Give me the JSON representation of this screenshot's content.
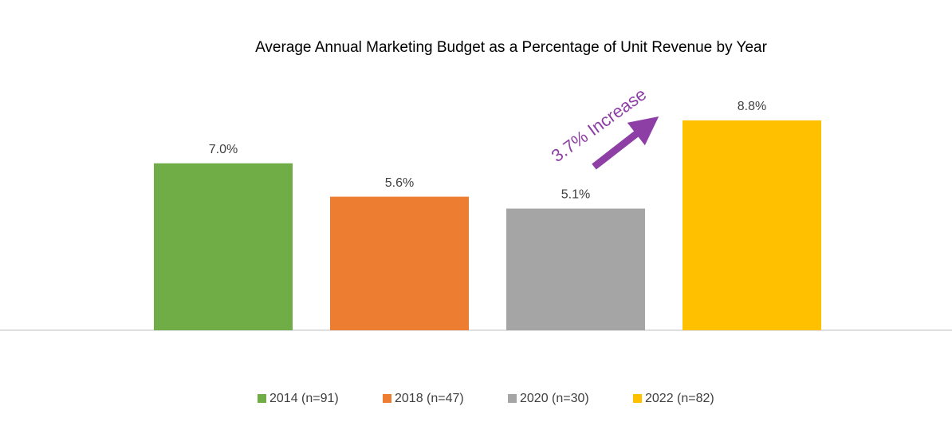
{
  "chart_data": {
    "type": "bar",
    "title": "Average Annual Marketing Budget as a Percentage of Unit Revenue by Year",
    "annotation": "3.7% Increase",
    "series": [
      {
        "name": "2014 (n=91)",
        "color": "#70ad47",
        "values": [
          7.0
        ],
        "value_labels": [
          "7.0%"
        ]
      },
      {
        "name": "2018 (n=47)",
        "color": "#ed7d31",
        "values": [
          5.6
        ],
        "value_labels": [
          "5.6%"
        ]
      },
      {
        "name": "2020 (n=30)",
        "color": "#a5a5a5",
        "values": [
          5.1
        ],
        "value_labels": [
          "5.1%"
        ]
      },
      {
        "name": "2022 (n=82)",
        "color": "#ffc000",
        "values": [
          8.8
        ],
        "value_labels": [
          "8.8%"
        ]
      }
    ]
  }
}
